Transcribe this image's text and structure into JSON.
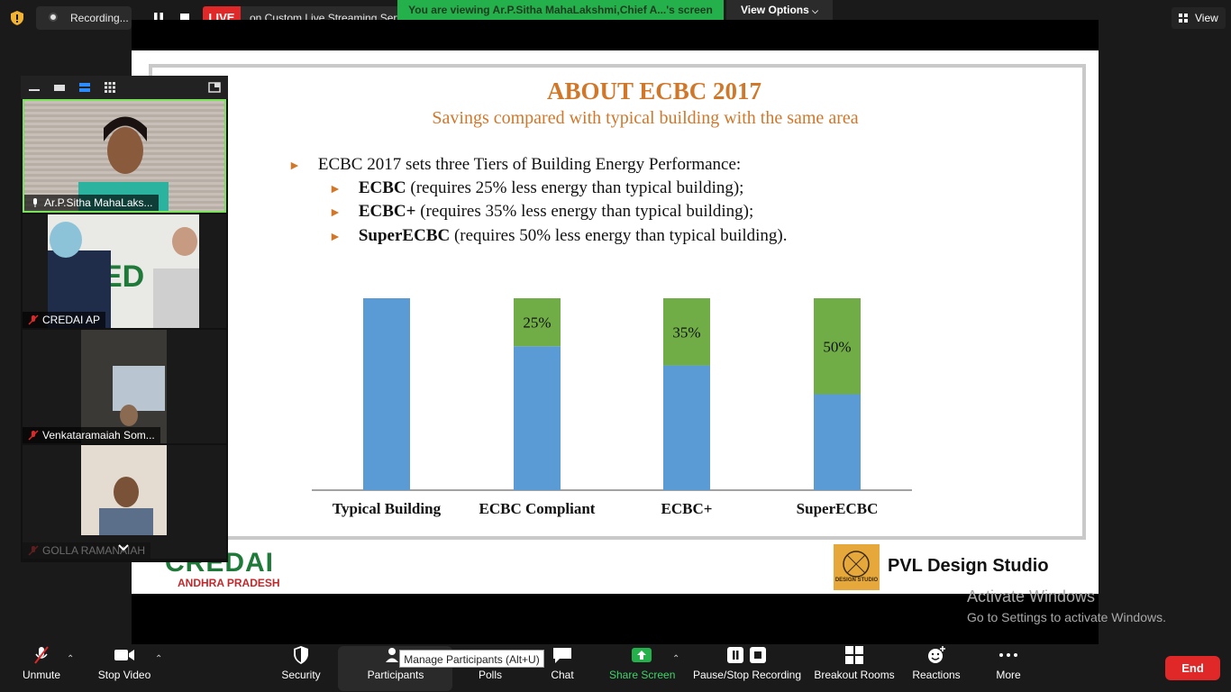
{
  "top": {
    "recording_label": "Recording...",
    "live_badge": "LIVE",
    "live_text": "on Custom Live Streaming Service",
    "viewing_banner": "You are viewing Ar.P.Sitha MahaLakshmi,Chief A...'s screen",
    "view_options": "View Options",
    "view_label": "View"
  },
  "slide": {
    "title": "ABOUT ECBC 2017",
    "subtitle": "Savings compared with typical building with the same area",
    "bullet_main": "ECBC 2017 sets three Tiers of Building Energy Performance:",
    "tiers": [
      {
        "name": "ECBC",
        "text": " (requires 25% less energy than typical building);"
      },
      {
        "name": "ECBC+",
        "text": " (requires 35% less energy than typical building);"
      },
      {
        "name": "SuperECBC",
        "text": " (requires 50% less energy than typical building)."
      }
    ],
    "credai_logo": "CREDAI",
    "credai_sub": "ANDHRA PRADESH",
    "pvl_name": "PVL Design Studio",
    "pvl_logo_text": "DESIGN STUDIO"
  },
  "chart_data": {
    "type": "bar",
    "stacked": true,
    "categories": [
      "Typical Building",
      "ECBC Compliant",
      "ECBC+",
      "SuperECBC"
    ],
    "series": [
      {
        "name": "",
        "values": [
          100,
          75,
          65,
          50
        ],
        "color": "#5b9bd5"
      },
      {
        "name": "",
        "values": [
          0,
          25,
          35,
          50
        ],
        "color": "#70ad47"
      }
    ],
    "data_labels": [
      "",
      "25%",
      "35%",
      "50%"
    ],
    "ylim": [
      0,
      100
    ],
    "grid": false
  },
  "watermark": {
    "line1": "Activate Windows",
    "line2": "Go to Settings to activate Windows."
  },
  "participants": [
    {
      "name": "Ar.P.Sitha MahaLaks...",
      "active": true
    },
    {
      "name": "CREDAI AP",
      "active": false
    },
    {
      "name": "Venkataramaiah Som...",
      "active": false
    },
    {
      "name": "GOLLA RAMANAIAH",
      "active": false
    }
  ],
  "toolbar": {
    "unmute": "Unmute",
    "stop_video": "Stop Video",
    "security": "Security",
    "participants": "Participants",
    "polls": "Polls",
    "chat": "Chat",
    "share_screen": "Share Screen",
    "pause_stop_recording": "Pause/Stop Recording",
    "breakout_rooms": "Breakout Rooms",
    "reactions": "Reactions",
    "more": "More",
    "end": "End",
    "tooltip": "Manage Participants (Alt+U)"
  },
  "colors": {
    "accent_green": "#24b04a",
    "live_red": "#e02828",
    "slide_orange": "#d1772a"
  }
}
